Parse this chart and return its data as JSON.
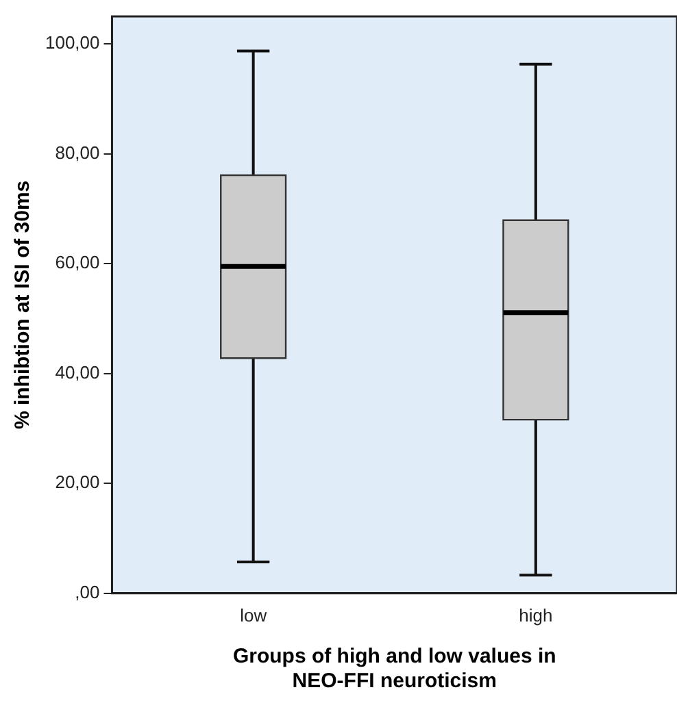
{
  "chart_data": {
    "type": "box",
    "xlabel": "Groups of high and low values in NEO-FFI neuroticism",
    "ylabel": "% inhibtion at ISI of 30ms",
    "categories": [
      "low",
      "high"
    ],
    "color": "#cccccc",
    "boxes": [
      {
        "low": 5.7,
        "q1": 42.8,
        "median": 59.5,
        "q3": 76.1,
        "high": 98.7
      },
      {
        "low": 3.3,
        "q1": 31.6,
        "median": 51.1,
        "q3": 67.9,
        "high": 96.3
      }
    ],
    "ylim": [
      0,
      105
    ],
    "yticks": [
      {
        "value": 0,
        "label": ",00"
      },
      {
        "value": 20,
        "label": "20,00"
      },
      {
        "value": 40,
        "label": "40,00"
      },
      {
        "value": 60,
        "label": "60,00"
      },
      {
        "value": 80,
        "label": "80,00"
      },
      {
        "value": 100,
        "label": "100,00"
      }
    ],
    "grid": false,
    "legend": false
  }
}
